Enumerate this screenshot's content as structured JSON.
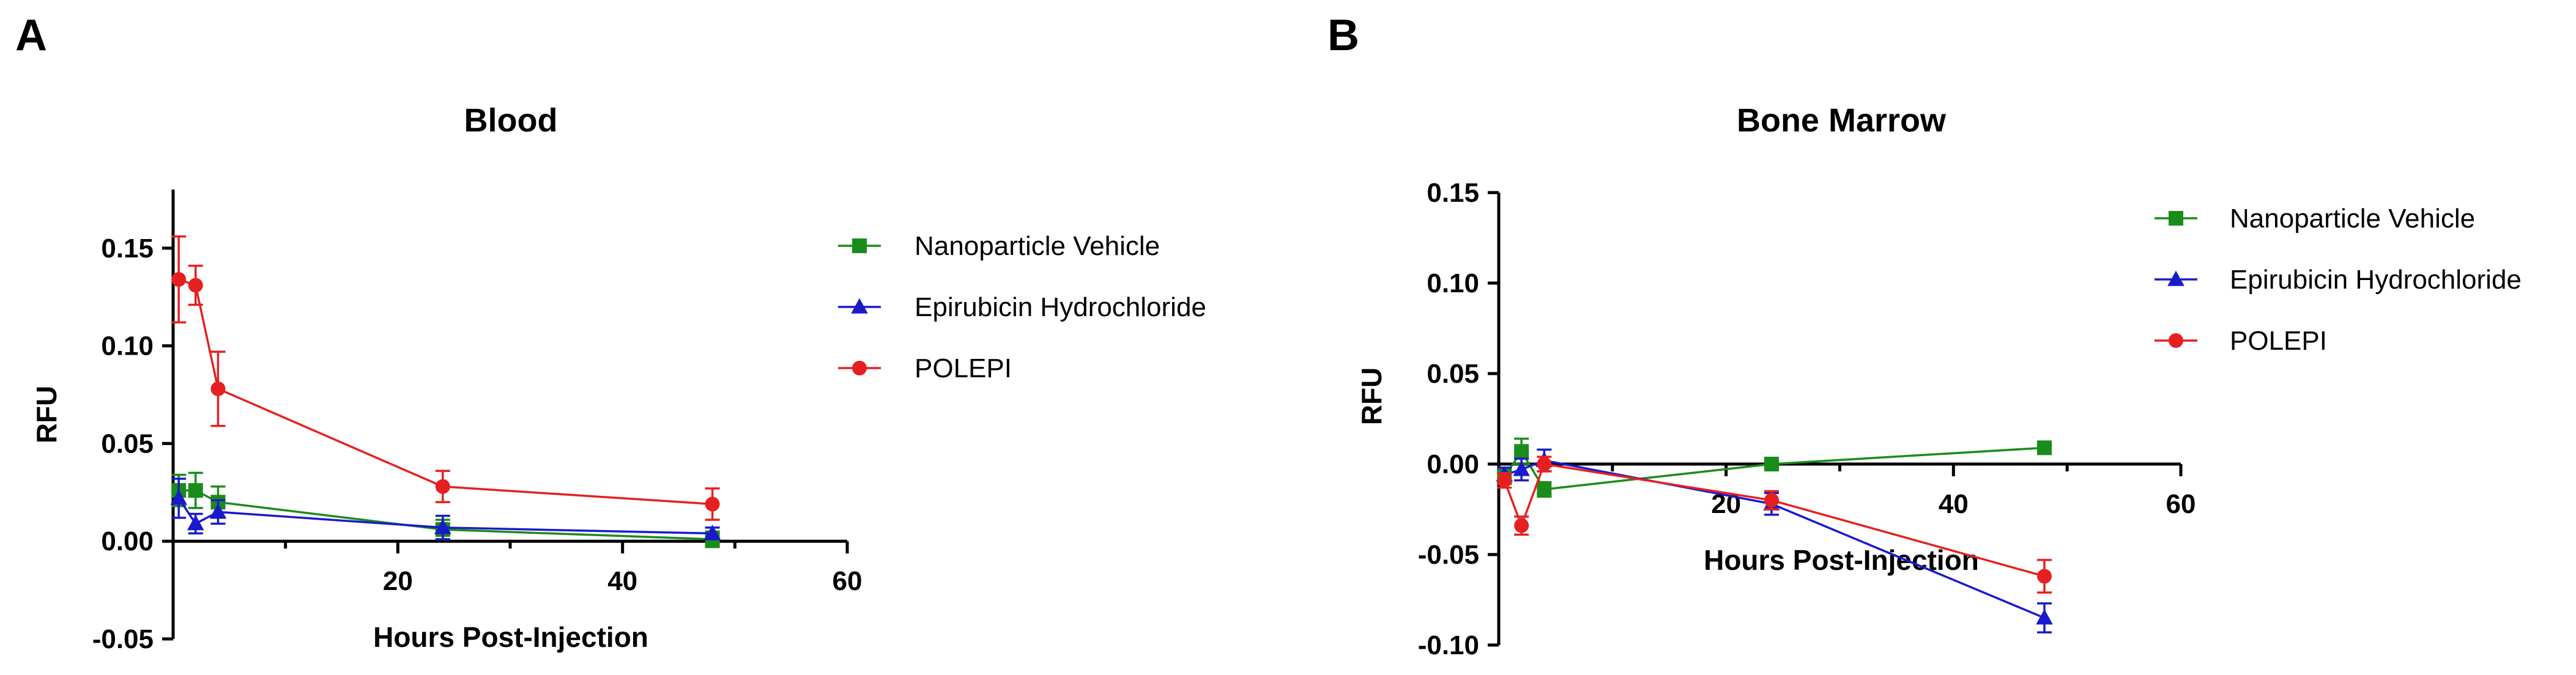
{
  "panels": [
    {
      "letter": "A"
    },
    {
      "letter": "B"
    }
  ],
  "chart_data": [
    {
      "type": "line",
      "title": "Blood",
      "xlabel": "Hours Post-Injection",
      "ylabel": "RFU",
      "xlim": [
        0,
        60
      ],
      "ylim": [
        -0.05,
        0.18
      ],
      "xticks": [
        20,
        40,
        60
      ],
      "yticks": [
        -0.05,
        0.0,
        0.05,
        0.1,
        0.15
      ],
      "ytick_labels": [
        "-0.05",
        "0.00",
        "0.05",
        "0.10",
        "0.15"
      ],
      "legend_position": "right",
      "series": [
        {
          "name": "Nanoparticle Vehicle",
          "color": "#1a8c1a",
          "marker": "square",
          "x": [
            0.5,
            2,
            4,
            24,
            48
          ],
          "y": [
            0.026,
            0.026,
            0.02,
            0.006,
            0.001
          ],
          "err": [
            0.008,
            0.009,
            0.008,
            0.005,
            0.004
          ]
        },
        {
          "name": "Epirubicin Hydrochloride",
          "color": "#1a1acc",
          "marker": "triangle",
          "x": [
            0.5,
            2,
            4,
            24,
            48
          ],
          "y": [
            0.022,
            0.009,
            0.015,
            0.007,
            0.004
          ],
          "err": [
            0.01,
            0.005,
            0.006,
            0.006,
            0.003
          ]
        },
        {
          "name": "POLEPI",
          "color": "#e62020",
          "marker": "circle",
          "x": [
            0.5,
            2,
            4,
            24,
            48
          ],
          "y": [
            0.134,
            0.131,
            0.078,
            0.028,
            0.019
          ],
          "err": [
            0.022,
            0.01,
            0.019,
            0.008,
            0.008
          ]
        }
      ]
    },
    {
      "type": "line",
      "title": "Bone Marrow",
      "xlabel": "Hours Post-Injection",
      "ylabel": "RFU",
      "xlim": [
        0,
        60
      ],
      "ylim": [
        -0.1,
        0.15
      ],
      "xticks": [
        20,
        40,
        60
      ],
      "yticks": [
        -0.1,
        -0.05,
        0.0,
        0.05,
        0.1,
        0.15
      ],
      "ytick_labels": [
        "-0.10",
        "-0.05",
        "0.00",
        "0.05",
        "0.10",
        "0.15"
      ],
      "legend_position": "right",
      "series": [
        {
          "name": "Nanoparticle Vehicle",
          "color": "#1a8c1a",
          "marker": "square",
          "x": [
            0.5,
            2,
            4,
            24,
            48
          ],
          "y": [
            -0.007,
            0.007,
            -0.014,
            0.0,
            0.009
          ],
          "err": [
            0.004,
            0.007,
            0.004,
            0.002,
            0.002
          ]
        },
        {
          "name": "Epirubicin Hydrochloride",
          "color": "#1a1acc",
          "marker": "triangle",
          "x": [
            0.5,
            2,
            4,
            24,
            48
          ],
          "y": [
            -0.006,
            -0.003,
            0.002,
            -0.022,
            -0.085
          ],
          "err": [
            0.004,
            0.006,
            0.006,
            0.006,
            0.008
          ]
        },
        {
          "name": "POLEPI",
          "color": "#e62020",
          "marker": "circle",
          "x": [
            0.5,
            2,
            4,
            24,
            48
          ],
          "y": [
            -0.009,
            -0.034,
            0.0,
            -0.02,
            -0.062
          ],
          "err": [
            0.004,
            0.005,
            0.004,
            0.005,
            0.009
          ]
        }
      ]
    }
  ]
}
